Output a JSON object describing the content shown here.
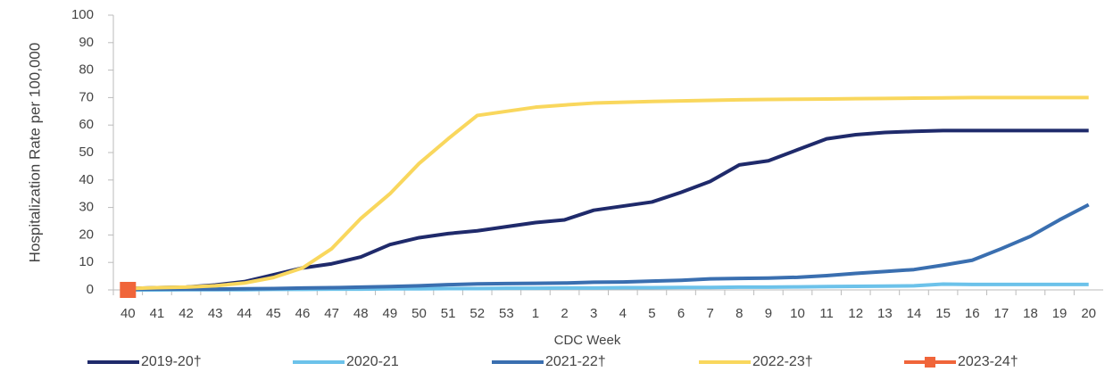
{
  "chart_data": {
    "type": "line",
    "x_label": "CDC Week",
    "y_label": "Hospitalization Rate per 100,000",
    "categories": [
      "40",
      "41",
      "42",
      "43",
      "44",
      "45",
      "46",
      "47",
      "48",
      "49",
      "50",
      "51",
      "52",
      "53",
      "1",
      "2",
      "3",
      "4",
      "5",
      "6",
      "7",
      "8",
      "9",
      "10",
      "11",
      "12",
      "13",
      "14",
      "15",
      "16",
      "17",
      "18",
      "19",
      "20"
    ],
    "ylim": [
      0,
      100
    ],
    "yticks": [
      0,
      10,
      20,
      30,
      40,
      50,
      60,
      70,
      80,
      90,
      100
    ],
    "grid": false,
    "legend": "bottom",
    "series": [
      {
        "name": "2019-20†",
        "color": "#1f2a6b",
        "values": [
          0.5,
          0.8,
          1,
          1.8,
          3,
          5.5,
          8,
          9.5,
          12,
          16.5,
          19,
          20.5,
          21.5,
          23,
          24.5,
          25.5,
          29,
          30.5,
          32,
          35.5,
          39.5,
          45.5,
          47,
          51,
          55,
          56.5,
          57.3,
          57.7,
          58,
          58,
          58,
          58,
          58,
          58
        ]
      },
      {
        "name": "2020-21",
        "color": "#6cc2ea",
        "values": [
          0,
          0,
          0.1,
          0.1,
          0.1,
          0.2,
          0.2,
          0.3,
          0.3,
          0.4,
          0.4,
          0.5,
          0.5,
          0.6,
          0.6,
          0.7,
          0.7,
          0.8,
          0.8,
          0.9,
          0.9,
          1,
          1,
          1.1,
          1.2,
          1.3,
          1.4,
          1.5,
          2.1,
          2,
          2,
          2,
          2,
          2
        ]
      },
      {
        "name": "2021-22†",
        "color": "#3a6fb0",
        "values": [
          0.2,
          0.3,
          0.3,
          0.3,
          0.4,
          0.5,
          0.7,
          0.8,
          1,
          1.2,
          1.5,
          1.9,
          2.2,
          2.3,
          2.4,
          2.5,
          2.8,
          2.9,
          3.2,
          3.5,
          4,
          4.2,
          4.3,
          4.6,
          5.2,
          6,
          6.7,
          7.4,
          9,
          10.8,
          15,
          19.5,
          25.5,
          31
        ]
      },
      {
        "name": "2022-23†",
        "color": "#f9d75d",
        "values": [
          0.5,
          0.8,
          1,
          1.5,
          2.5,
          4.5,
          8,
          15,
          26,
          35,
          46,
          55,
          63.5,
          65,
          66.5,
          67.3,
          68,
          68.3,
          68.6,
          68.8,
          69,
          69.2,
          69.3,
          69.4,
          69.5,
          69.6,
          69.7,
          69.8,
          69.9,
          70,
          70,
          70,
          70,
          70
        ]
      },
      {
        "name": "2023-24†",
        "color": "#f0653a",
        "marker": "square",
        "values": [
          0,
          null,
          null,
          null,
          null,
          null,
          null,
          null,
          null,
          null,
          null,
          null,
          null,
          null,
          null,
          null,
          null,
          null,
          null,
          null,
          null,
          null,
          null,
          null,
          null,
          null,
          null,
          null,
          null,
          null,
          null,
          null,
          null,
          null
        ]
      }
    ]
  }
}
